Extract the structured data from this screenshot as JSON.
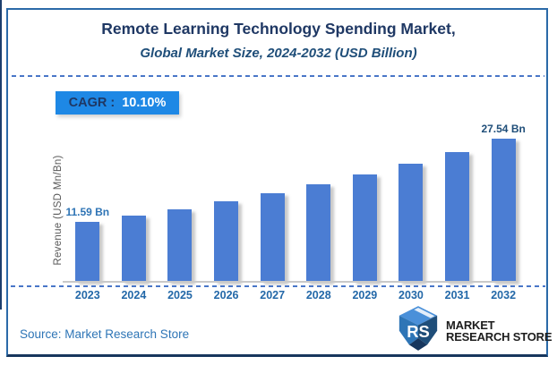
{
  "cagr_badge": {
    "label": "CAGR :",
    "value": "10.10%"
  },
  "source_note": "Source: Market Research Store",
  "logo": {
    "icon": "mrs-cube-logo",
    "line1": "MARKET",
    "line2": "RESEARCH STORE"
  },
  "colors": {
    "accent_blue": "#1e88e5",
    "bar_fill": "#4b7dd3",
    "title_navy": "#1f3864",
    "subtitle_blue": "#1f4e79",
    "label_blue": "#2e74b5",
    "label_navy": "#1f4e79",
    "tick_blue": "#2368a8",
    "dashed_blue": "#4976c8",
    "axis_gray": "#595959",
    "source_blue": "#2e75b6",
    "border_blue": "#2b6aa8",
    "border_bottom_navy": "#17365d",
    "edge_navy": "#1c3e6d",
    "logo_text_dark": "#1d1d1d"
  },
  "chart_data": {
    "type": "bar",
    "title": "Remote Learning Technology Spending Market,",
    "subtitle": "Global Market Size, 2024-2032 (USD Billion)",
    "categories": [
      "2023",
      "2024",
      "2025",
      "2026",
      "2027",
      "2028",
      "2029",
      "2030",
      "2031",
      "2032"
    ],
    "values": [
      11.59,
      12.76,
      14.05,
      15.47,
      17.03,
      18.75,
      20.65,
      22.73,
      25.03,
      27.54
    ],
    "bar_labels": [
      "11.59 Bn",
      "",
      "",
      "",
      "",
      "",
      "",
      "",
      "",
      "27.54 Bn"
    ],
    "cagr_percent": 10.1,
    "xlabel": "",
    "ylabel": "Revenue (USD Mn/Bn)",
    "ylim": [
      0,
      30
    ],
    "grid": false,
    "legend": "none"
  }
}
